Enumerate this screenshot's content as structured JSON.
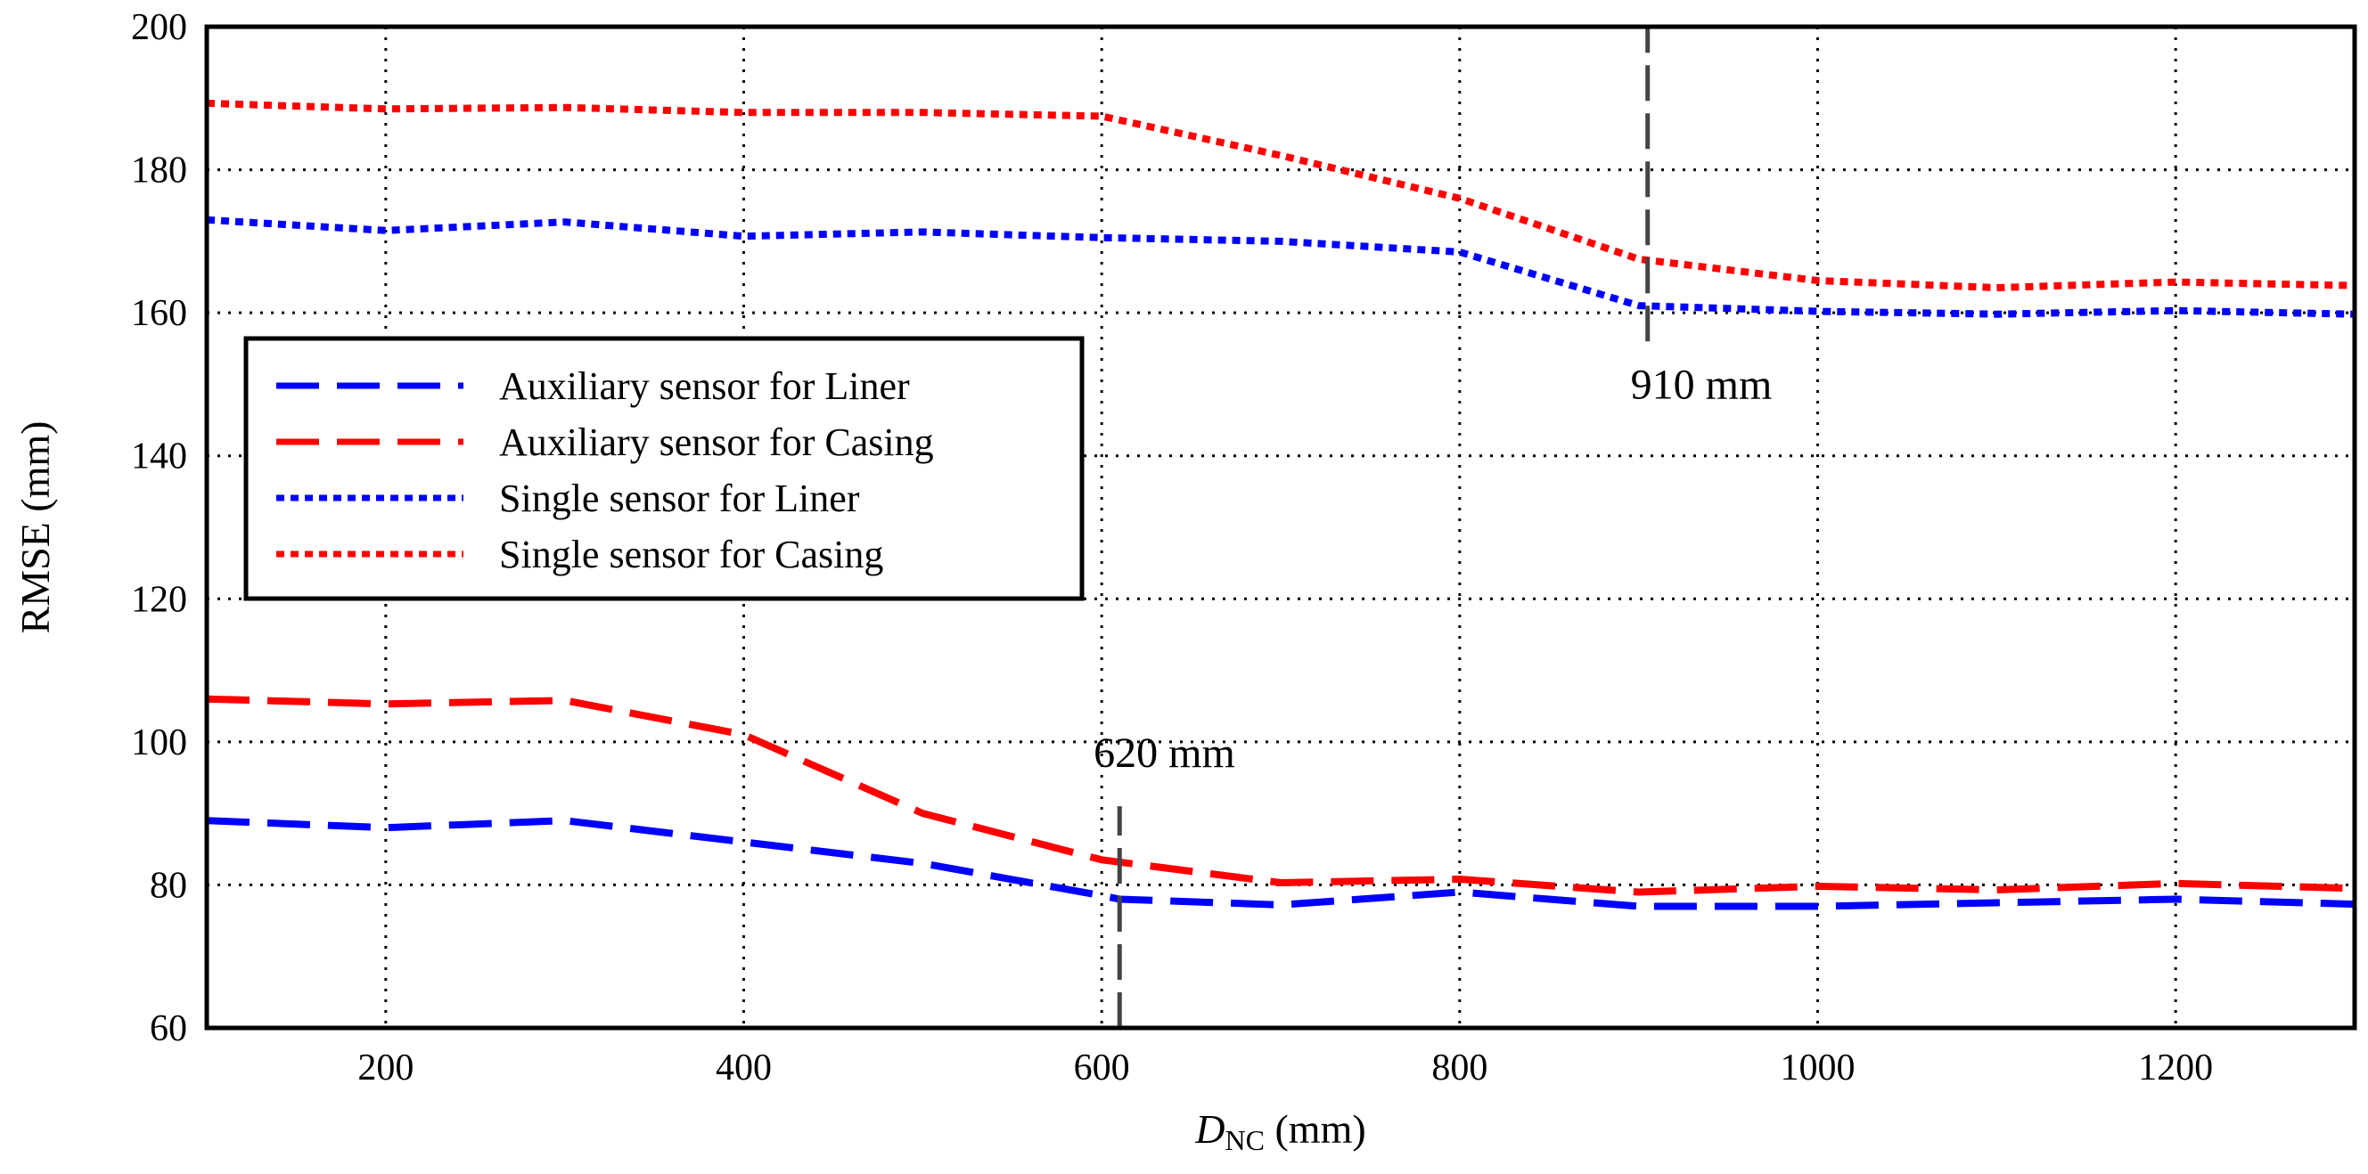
{
  "chart_data": {
    "type": "line",
    "title": "",
    "xlabel_italic": "D",
    "xlabel_sub": "NC",
    "xlabel_unit": " (mm)",
    "ylabel": "RMSE (mm)",
    "xlim": [
      100,
      1300
    ],
    "ylim": [
      60,
      200
    ],
    "xticks": [
      200,
      400,
      600,
      800,
      1000,
      1200
    ],
    "yticks": [
      60,
      80,
      100,
      120,
      140,
      160,
      180,
      200
    ],
    "grid": true,
    "legend_position": "center-left",
    "series": [
      {
        "name": "Auxiliary sensor for Liner",
        "color": "#0000ff",
        "style": "dashed",
        "x": [
          100,
          200,
          300,
          400,
          500,
          600,
          610,
          700,
          800,
          900,
          1000,
          1100,
          1200,
          1300
        ],
        "y": [
          89,
          88,
          89,
          86,
          83,
          78.5,
          78,
          77.2,
          79,
          77,
          77,
          77.5,
          78,
          77.3
        ]
      },
      {
        "name": "Auxiliary sensor for Casing",
        "color": "#ff0000",
        "style": "dashed",
        "x": [
          100,
          200,
          300,
          400,
          500,
          600,
          700,
          800,
          900,
          1000,
          1100,
          1200,
          1300
        ],
        "y": [
          106,
          105.3,
          105.8,
          101,
          90,
          83.5,
          80.3,
          80.8,
          79,
          79.8,
          79.3,
          80.2,
          79.5
        ]
      },
      {
        "name": "Single sensor for Liner",
        "color": "#0000ff",
        "style": "dotted",
        "x": [
          100,
          200,
          300,
          400,
          500,
          600,
          700,
          800,
          900,
          1000,
          1100,
          1200,
          1300
        ],
        "y": [
          173,
          171.5,
          172.7,
          170.7,
          171.3,
          170.5,
          170,
          168.5,
          161,
          160.2,
          159.8,
          160.3,
          159.8
        ]
      },
      {
        "name": "Single sensor for Casing",
        "color": "#ff0000",
        "style": "dotted",
        "x": [
          100,
          200,
          300,
          400,
          500,
          600,
          700,
          800,
          900,
          1000,
          1100,
          1200,
          1300
        ],
        "y": [
          189.3,
          188.5,
          188.7,
          188,
          188,
          187.5,
          182,
          176,
          167.5,
          164.5,
          163.5,
          164.3,
          163.8
        ]
      }
    ],
    "annotations": [
      {
        "text": "620 mm",
        "x_at": 610,
        "y_from": 60,
        "y_to": 91,
        "label_x": 635,
        "label_y": 96.5
      },
      {
        "text": "910 mm",
        "x_at": 905,
        "y_from": 156,
        "y_to": 200,
        "label_x": 935,
        "label_y": 148
      }
    ]
  }
}
